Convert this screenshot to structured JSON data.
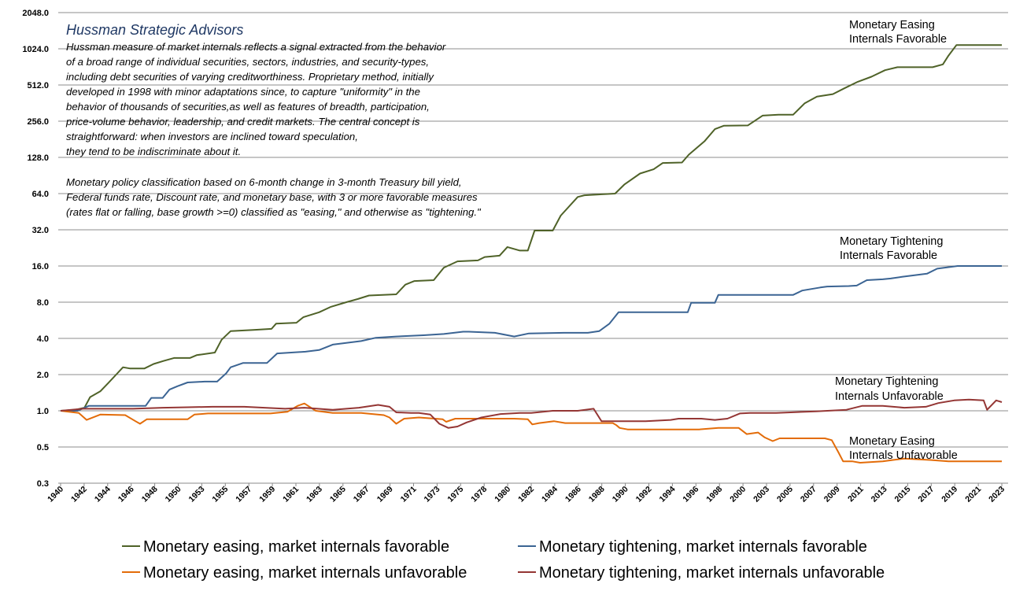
{
  "chart_data": {
    "type": "line",
    "y_scale": "log2",
    "ylim": [
      0.25,
      2048
    ],
    "y_ticks": [
      "2048.0",
      "1024.0",
      "512.0",
      "256.0",
      "128.0",
      "64.0",
      "32.0",
      "16.0",
      "8.0",
      "4.0",
      "2.0",
      "1.0",
      "0.5",
      "0.3"
    ],
    "x_ticks": [
      "1940",
      "1942",
      "1944",
      "1946",
      "1948",
      "1950",
      "1953",
      "1955",
      "1957",
      "1959",
      "1961",
      "1963",
      "1965",
      "1967",
      "1969",
      "1971",
      "1973",
      "1975",
      "1978",
      "1980",
      "1982",
      "1984",
      "1986",
      "1988",
      "1990",
      "1992",
      "1994",
      "1996",
      "1998",
      "2000",
      "2003",
      "2005",
      "2007",
      "2009",
      "2011",
      "2013",
      "2015",
      "2017",
      "2019",
      "2021",
      "2023"
    ],
    "xlim": [
      1940,
      2023
    ],
    "grid": "horizontal",
    "legend_position": "bottom",
    "annotation": {
      "title": "Hussman Strategic Advisors",
      "paragraph1": [
        "Hussman measure of market internals reflects a signal extracted from the behavior",
        "of a broad range of individual securities, sectors, industries, and security-types,",
        "including debt securities of varying creditworthiness.  Proprietary method, initially",
        "developed in 1998 with minor adaptations  since, to capture \"uniformity\" in the",
        "behavior of thousands of securities,as  well as features of breadth, participation,",
        "price-volume behavior, leadership, and credit markets. The central concept is",
        "straightforward: when investors are inclined toward speculation,",
        "they tend to be indiscriminate about it."
      ],
      "paragraph2": [
        "Monetary policy classification based on 6-month change in 3-month Treasury bill yield,",
        "Federal funds rate, Discount rate, and monetary base, with 3 or more favorable measures",
        "(rates flat or falling, base growth >=0) classified as \"easing,\" and otherwise as \"tightening.\""
      ]
    },
    "series": [
      {
        "name": "Monetary easing, market internals favorable",
        "color": "#4F6228",
        "label_lines": [
          "Monetary Easing",
          "Internals Favorable"
        ],
        "points": [
          [
            1940,
            1.0
          ],
          [
            1941.3,
            1.02
          ],
          [
            1942.1,
            1.06
          ],
          [
            1942.6,
            1.3
          ],
          [
            1943.5,
            1.45
          ],
          [
            1944.2,
            1.7
          ],
          [
            1944.9,
            2.0
          ],
          [
            1945.5,
            2.3
          ],
          [
            1946.1,
            2.25
          ],
          [
            1947.4,
            2.25
          ],
          [
            1948.2,
            2.45
          ],
          [
            1949.1,
            2.6
          ],
          [
            1950.0,
            2.75
          ],
          [
            1951.4,
            2.75
          ],
          [
            1952.0,
            2.9
          ],
          [
            1953.6,
            3.05
          ],
          [
            1954.2,
            3.9
          ],
          [
            1955.0,
            4.6
          ],
          [
            1957.0,
            4.7
          ],
          [
            1958.6,
            4.8
          ],
          [
            1959.0,
            5.3
          ],
          [
            1960.8,
            5.4
          ],
          [
            1961.4,
            6.0
          ],
          [
            1962.8,
            6.6
          ],
          [
            1963.8,
            7.3
          ],
          [
            1965.2,
            8.0
          ],
          [
            1966.2,
            8.5
          ],
          [
            1967.2,
            9.1
          ],
          [
            1969.6,
            9.3
          ],
          [
            1970.4,
            11.2
          ],
          [
            1971.2,
            12.0
          ],
          [
            1972.9,
            12.2
          ],
          [
            1973.8,
            15.5
          ],
          [
            1975.0,
            17.5
          ],
          [
            1976.8,
            17.8
          ],
          [
            1977.4,
            19.0
          ],
          [
            1978.7,
            19.5
          ],
          [
            1979.4,
            23.0
          ],
          [
            1980.5,
            21.5
          ],
          [
            1981.2,
            21.5
          ],
          [
            1981.8,
            31.5
          ],
          [
            1983.4,
            31.5
          ],
          [
            1984.1,
            42.0
          ],
          [
            1985.6,
            60.0
          ],
          [
            1986.2,
            62.0
          ],
          [
            1988.9,
            64.0
          ],
          [
            1989.7,
            76.0
          ],
          [
            1991.1,
            94.0
          ],
          [
            1992.3,
            102.0
          ],
          [
            1993.1,
            115.0
          ],
          [
            1994.8,
            116.0
          ],
          [
            1995.4,
            135.0
          ],
          [
            1996.8,
            175.0
          ],
          [
            1997.7,
            220.0
          ],
          [
            1998.5,
            235.0
          ],
          [
            2000.6,
            236.0
          ],
          [
            2001.9,
            285.0
          ],
          [
            2003.3,
            290.0
          ],
          [
            2004.6,
            290.0
          ],
          [
            2005.6,
            360.0
          ],
          [
            2006.7,
            410.0
          ],
          [
            2008.1,
            430.0
          ],
          [
            2009.1,
            480.0
          ],
          [
            2010.3,
            545.0
          ],
          [
            2011.5,
            600.0
          ],
          [
            2012.7,
            680.0
          ],
          [
            2013.8,
            720.0
          ],
          [
            2016.9,
            720.0
          ],
          [
            2017.8,
            760.0
          ],
          [
            2018.3,
            900.0
          ],
          [
            2019.0,
            1100.0
          ],
          [
            2020.6,
            1100.0
          ],
          [
            2023,
            1100.0
          ]
        ]
      },
      {
        "name": "Monetary tightening, market internals favorable",
        "color": "#3B6493",
        "label_lines": [
          "Monetary Tightening",
          "Internals Favorable"
        ],
        "points": [
          [
            1940,
            1.0
          ],
          [
            1941.5,
            1.0
          ],
          [
            1942.5,
            1.1
          ],
          [
            1946.1,
            1.1
          ],
          [
            1947.5,
            1.1
          ],
          [
            1948.0,
            1.28
          ],
          [
            1949.0,
            1.28
          ],
          [
            1949.6,
            1.5
          ],
          [
            1950.3,
            1.6
          ],
          [
            1951.2,
            1.72
          ],
          [
            1952.7,
            1.75
          ],
          [
            1953.8,
            1.75
          ],
          [
            1954.6,
            2.05
          ],
          [
            1955.0,
            2.3
          ],
          [
            1956.1,
            2.5
          ],
          [
            1958.2,
            2.5
          ],
          [
            1959.1,
            3.0
          ],
          [
            1961.6,
            3.1
          ],
          [
            1962.8,
            3.2
          ],
          [
            1964.0,
            3.55
          ],
          [
            1966.5,
            3.8
          ],
          [
            1967.8,
            4.05
          ],
          [
            1969.6,
            4.15
          ],
          [
            1972.0,
            4.25
          ],
          [
            1973.8,
            4.35
          ],
          [
            1975.5,
            4.55
          ],
          [
            1976.0,
            4.55
          ],
          [
            1978.3,
            4.45
          ],
          [
            1980.0,
            4.15
          ],
          [
            1981.3,
            4.4
          ],
          [
            1984.4,
            4.45
          ],
          [
            1986.5,
            4.45
          ],
          [
            1987.5,
            4.6
          ],
          [
            1988.4,
            5.3
          ],
          [
            1989.2,
            6.6
          ],
          [
            1991.1,
            6.6
          ],
          [
            1995.3,
            6.6
          ],
          [
            1995.6,
            7.9
          ],
          [
            1997.7,
            7.9
          ],
          [
            1998.0,
            9.2
          ],
          [
            2000.6,
            9.2
          ],
          [
            2004.6,
            9.2
          ],
          [
            2005.4,
            10.0
          ],
          [
            2007.0,
            10.6
          ],
          [
            2007.6,
            10.8
          ],
          [
            2009.5,
            10.9
          ],
          [
            2010.2,
            11.0
          ],
          [
            2011.1,
            12.2
          ],
          [
            2012.5,
            12.4
          ],
          [
            2013.2,
            12.6
          ],
          [
            2014.2,
            13.0
          ],
          [
            2016.4,
            13.8
          ],
          [
            2017.3,
            15.2
          ],
          [
            2019.1,
            16.0
          ],
          [
            2021.3,
            16.0
          ],
          [
            2023,
            16.0
          ]
        ]
      },
      {
        "name": "Monetary easing, market internals unfavorable",
        "color": "#E36C09",
        "label_lines": [
          "Monetary Easing",
          "Internals Unfavorable"
        ],
        "points": [
          [
            1940,
            1.0
          ],
          [
            1941.6,
            0.96
          ],
          [
            1942.3,
            0.84
          ],
          [
            1943.5,
            0.93
          ],
          [
            1945.7,
            0.92
          ],
          [
            1946.6,
            0.82
          ],
          [
            1947.0,
            0.78
          ],
          [
            1947.6,
            0.85
          ],
          [
            1949.3,
            0.85
          ],
          [
            1951.2,
            0.85
          ],
          [
            1951.8,
            0.93
          ],
          [
            1953.0,
            0.95
          ],
          [
            1958.5,
            0.95
          ],
          [
            1960.0,
            0.98
          ],
          [
            1960.9,
            1.1
          ],
          [
            1961.5,
            1.15
          ],
          [
            1962.5,
            1.0
          ],
          [
            1964.0,
            0.96
          ],
          [
            1966.5,
            0.96
          ],
          [
            1968.5,
            0.92
          ],
          [
            1969.0,
            0.88
          ],
          [
            1969.6,
            0.78
          ],
          [
            1970.3,
            0.86
          ],
          [
            1971.6,
            0.88
          ],
          [
            1973.7,
            0.85
          ],
          [
            1974.0,
            0.81
          ],
          [
            1974.8,
            0.86
          ],
          [
            1980.0,
            0.86
          ],
          [
            1981.2,
            0.85
          ],
          [
            1981.6,
            0.77
          ],
          [
            1982.2,
            0.79
          ],
          [
            1983.5,
            0.82
          ],
          [
            1984.5,
            0.79
          ],
          [
            1986.7,
            0.79
          ],
          [
            1988.7,
            0.79
          ],
          [
            1989.0,
            0.76
          ],
          [
            1989.3,
            0.72
          ],
          [
            1990.0,
            0.7
          ],
          [
            1991.1,
            0.7
          ],
          [
            1992.7,
            0.7
          ],
          [
            1994.4,
            0.7
          ],
          [
            1996.3,
            0.7
          ],
          [
            1998.0,
            0.72
          ],
          [
            1999.8,
            0.72
          ],
          [
            2000.5,
            0.64
          ],
          [
            2001.5,
            0.66
          ],
          [
            2002.1,
            0.6
          ],
          [
            2002.8,
            0.56
          ],
          [
            2003.4,
            0.59
          ],
          [
            2005.9,
            0.59
          ],
          [
            2007.4,
            0.59
          ],
          [
            2008.0,
            0.57
          ],
          [
            2008.6,
            0.45
          ],
          [
            2009.0,
            0.38
          ],
          [
            2009.8,
            0.38
          ],
          [
            2010.5,
            0.37
          ],
          [
            2012.5,
            0.38
          ],
          [
            2013.4,
            0.39
          ],
          [
            2014.4,
            0.4
          ],
          [
            2016.7,
            0.39
          ],
          [
            2018.3,
            0.38
          ],
          [
            2019.5,
            0.38
          ],
          [
            2020.5,
            0.38
          ],
          [
            2023,
            0.38
          ]
        ]
      },
      {
        "name": "Monetary tightening, market internals unfavorable",
        "color": "#943634",
        "label_lines": [
          "Monetary Tightening",
          "Internals Unfavorable"
        ],
        "points": [
          [
            1940,
            1.0
          ],
          [
            1942.0,
            1.04
          ],
          [
            1946.4,
            1.04
          ],
          [
            1949.0,
            1.06
          ],
          [
            1951.2,
            1.07
          ],
          [
            1953.4,
            1.08
          ],
          [
            1956.2,
            1.08
          ],
          [
            1959.8,
            1.04
          ],
          [
            1961.5,
            1.06
          ],
          [
            1964.0,
            1.02
          ],
          [
            1966.3,
            1.06
          ],
          [
            1968.0,
            1.12
          ],
          [
            1969.0,
            1.08
          ],
          [
            1969.6,
            0.97
          ],
          [
            1970.9,
            0.96
          ],
          [
            1971.6,
            0.96
          ],
          [
            1972.6,
            0.93
          ],
          [
            1973.4,
            0.78
          ],
          [
            1974.2,
            0.72
          ],
          [
            1975.0,
            0.74
          ],
          [
            1975.8,
            0.8
          ],
          [
            1977.1,
            0.88
          ],
          [
            1978.8,
            0.94
          ],
          [
            1980.5,
            0.96
          ],
          [
            1981.5,
            0.96
          ],
          [
            1983.4,
            1.0
          ],
          [
            1985.6,
            1.0
          ],
          [
            1987.0,
            1.04
          ],
          [
            1987.7,
            0.82
          ],
          [
            1988.4,
            0.82
          ],
          [
            1991.6,
            0.82
          ],
          [
            1993.8,
            0.84
          ],
          [
            1994.5,
            0.86
          ],
          [
            1996.5,
            0.86
          ],
          [
            1997.7,
            0.84
          ],
          [
            1998.8,
            0.86
          ],
          [
            1999.9,
            0.95
          ],
          [
            2000.8,
            0.96
          ],
          [
            2003.1,
            0.96
          ],
          [
            2006.6,
            0.99
          ],
          [
            2009.3,
            1.02
          ],
          [
            2010.7,
            1.1
          ],
          [
            2012.5,
            1.1
          ],
          [
            2014.4,
            1.06
          ],
          [
            2016.3,
            1.08
          ],
          [
            2017.4,
            1.16
          ],
          [
            2018.8,
            1.22
          ],
          [
            2020.1,
            1.24
          ],
          [
            2021.4,
            1.22
          ],
          [
            2021.7,
            1.02
          ],
          [
            2022.5,
            1.22
          ],
          [
            2023,
            1.18
          ]
        ]
      }
    ]
  }
}
